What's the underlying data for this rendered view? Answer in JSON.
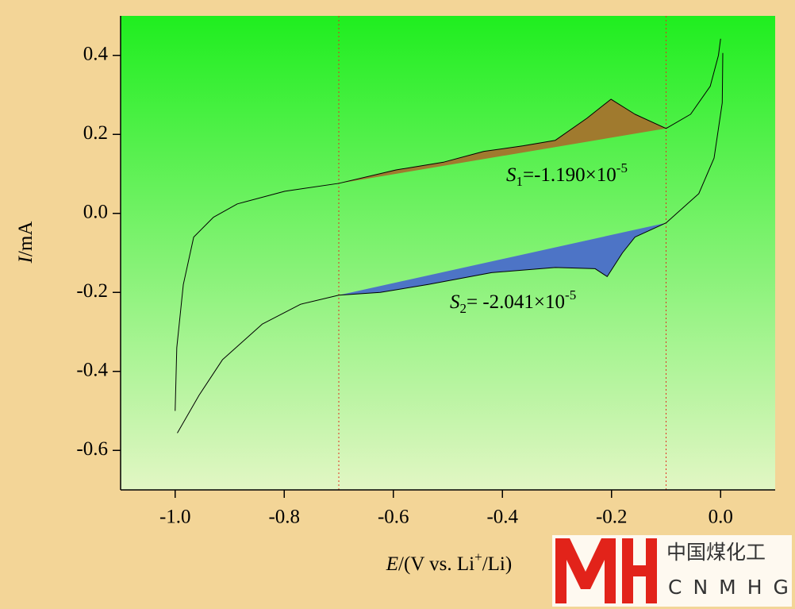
{
  "chart_data": {
    "type": "line",
    "background": "#f3d597",
    "plot_gradient": [
      "#1fee1f",
      "#e2f6c4"
    ],
    "xlabel": {
      "symbol": "E",
      "text": "/(V vs. Li",
      "superscript": "+",
      "tail": "/Li)"
    },
    "ylabel": {
      "symbol": "I",
      "text": "/mA"
    },
    "xlim": [
      -1.1,
      0.1
    ],
    "ylim": [
      -0.7,
      0.5
    ],
    "xticks": [
      {
        "value": -1,
        "label": "-1.0"
      },
      -0.8,
      -0.6,
      -0.4,
      -0.2,
      {
        "value": 0,
        "label": "0.0"
      }
    ],
    "yticks": [
      0.4,
      0.2,
      {
        "value": 0,
        "label": "0.0"
      },
      -0.2,
      -0.4,
      -0.6
    ],
    "series": [
      {
        "color": "#000000",
        "x": [
          -1.0,
          -0.997,
          -0.985,
          -0.966,
          -0.93,
          -0.886,
          -0.799,
          -0.7,
          -0.595,
          -0.507,
          -0.434,
          -0.362,
          -0.303,
          -0.245,
          -0.201,
          -0.157,
          -0.1,
          -0.055,
          -0.019,
          -0.004,
          0.0
        ],
        "values": [
          -0.5,
          -0.34,
          -0.18,
          -0.06,
          -0.01,
          0.024,
          0.056,
          0.076,
          0.11,
          0.13,
          0.157,
          0.171,
          0.185,
          0.241,
          0.289,
          0.251,
          0.215,
          0.251,
          0.322,
          0.4,
          0.442
        ]
      },
      {
        "color": "#000000",
        "x": [
          0.004,
          0.003,
          -0.012,
          -0.04,
          -0.1,
          -0.157,
          -0.18,
          -0.208,
          -0.23,
          -0.303,
          -0.42,
          -0.536,
          -0.624,
          -0.7,
          -0.77,
          -0.84,
          -0.913,
          -0.956,
          -0.996
        ],
        "values": [
          0.406,
          0.28,
          0.14,
          0.05,
          -0.024,
          -0.06,
          -0.1,
          -0.16,
          -0.14,
          -0.137,
          -0.15,
          -0.18,
          -0.2,
          -0.207,
          -0.23,
          -0.28,
          -0.37,
          -0.46,
          -0.556
        ]
      }
    ],
    "fills": [
      {
        "series": 0,
        "color": "#a07a2e"
      },
      {
        "series": 1,
        "color": "#4d74c6"
      }
    ],
    "vlines": {
      "x": [
        -0.7,
        -0.1
      ],
      "color": "#e0301e"
    },
    "annotations": [
      {
        "symbol": "S",
        "subscript": "1",
        "text": "=-1.190×10",
        "superscript": "-5"
      },
      {
        "symbol": "S",
        "subscript": "2",
        "text": "= -2.041×10",
        "superscript": "-5"
      }
    ],
    "logo": {
      "cn": "中国煤化工",
      "en": "CNMHG"
    }
  }
}
